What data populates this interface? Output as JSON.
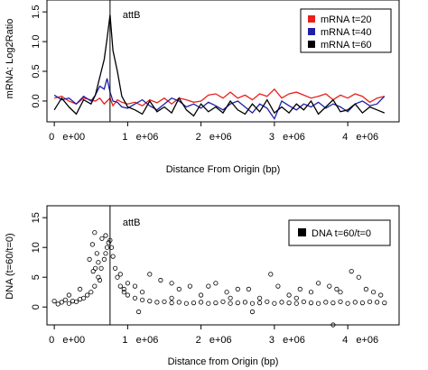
{
  "chart_data": [
    {
      "type": "line",
      "title": "",
      "xlabel": "Distance From Origin (bp)",
      "ylabel": "mRNA: Log2Ratio",
      "xlim": [
        -100000,
        4700000
      ],
      "ylim": [
        -0.35,
        1.7
      ],
      "x_ticks": [
        {
          "value": 0,
          "label": "0   e+00"
        },
        {
          "value": 1000000,
          "label": "1   e+06"
        },
        {
          "value": 2000000,
          "label": "2   e+06"
        },
        {
          "value": 3000000,
          "label": "3   e+06"
        },
        {
          "value": 4000000,
          "label": "4   e+06"
        }
      ],
      "y_ticks": [
        {
          "value": 0.0,
          "label": "0.0"
        },
        {
          "value": 0.5,
          "label": "0.5"
        },
        {
          "value": 1.0,
          "label": "1.0"
        },
        {
          "value": 1.5,
          "label": "1.5"
        }
      ],
      "vline": {
        "x": 760000,
        "label": "attB"
      },
      "legend_position": "top-right",
      "grid": false,
      "x": [
        0,
        100000,
        200000,
        300000,
        400000,
        500000,
        560000,
        620000,
        680000,
        720000,
        760000,
        800000,
        860000,
        920000,
        1000000,
        1100000,
        1200000,
        1300000,
        1400000,
        1500000,
        1600000,
        1700000,
        1800000,
        1900000,
        2000000,
        2100000,
        2200000,
        2300000,
        2400000,
        2500000,
        2600000,
        2700000,
        2800000,
        2900000,
        3000000,
        3100000,
        3200000,
        3300000,
        3400000,
        3500000,
        3600000,
        3700000,
        3800000,
        3900000,
        4000000,
        4100000,
        4200000,
        4300000,
        4400000,
        4500000
      ],
      "series": [
        {
          "name": "mRNA t=20",
          "color": "#e8211d",
          "values": [
            0.05,
            0.08,
            0.0,
            -0.05,
            0.05,
            0.02,
            0.0,
            0.05,
            -0.05,
            0.0,
            0.05,
            -0.08,
            0.02,
            -0.02,
            -0.05,
            -0.02,
            -0.08,
            0.02,
            -0.03,
            0.05,
            -0.05,
            0.05,
            0.02,
            -0.02,
            0.0,
            0.1,
            0.12,
            0.05,
            0.15,
            0.05,
            0.1,
            0.02,
            0.12,
            0.08,
            0.2,
            0.05,
            0.12,
            0.15,
            0.1,
            0.05,
            0.08,
            0.12,
            0.02,
            0.1,
            0.05,
            0.12,
            0.08,
            -0.02,
            0.05,
            0.08
          ]
        },
        {
          "name": "mRNA t=40",
          "color": "#1f1fa8",
          "values": [
            0.1,
            0.02,
            0.05,
            -0.05,
            0.08,
            0.0,
            0.1,
            0.25,
            0.2,
            0.38,
            0.15,
            0.0,
            -0.02,
            -0.1,
            -0.12,
            -0.05,
            0.02,
            -0.08,
            -0.15,
            -0.05,
            0.05,
            0.0,
            -0.1,
            -0.05,
            -0.12,
            -0.02,
            -0.08,
            -0.15,
            -0.05,
            0.0,
            -0.1,
            -0.2,
            -0.05,
            -0.12,
            -0.3,
            0.0,
            -0.08,
            -0.15,
            -0.05,
            -0.1,
            -0.02,
            -0.12,
            -0.05,
            -0.1,
            -0.18,
            -0.05,
            0.0,
            -0.08,
            -0.05,
            0.08
          ]
        },
        {
          "name": "mRNA t=60",
          "color": "#000000",
          "values": [
            -0.15,
            0.05,
            -0.1,
            -0.22,
            0.02,
            -0.05,
            0.1,
            0.4,
            0.7,
            1.05,
            1.45,
            0.85,
            0.5,
            0.08,
            -0.1,
            -0.15,
            -0.22,
            0.0,
            -0.18,
            -0.1,
            -0.2,
            0.05,
            -0.15,
            -0.25,
            -0.05,
            -0.18,
            -0.1,
            -0.2,
            0.0,
            -0.15,
            -0.22,
            -0.05,
            -0.18,
            0.02,
            -0.2,
            -0.1,
            -0.2,
            -0.05,
            -0.15,
            0.0,
            -0.22,
            -0.1,
            0.02,
            -0.18,
            -0.15,
            -0.05,
            -0.2,
            -0.1,
            -0.15,
            -0.2
          ]
        }
      ]
    },
    {
      "type": "scatter",
      "title": "",
      "xlabel": "Distance from Origin (bp)",
      "ylabel": "DNA (t=60/t=0)",
      "xlim": [
        -100000,
        4700000
      ],
      "ylim": [
        -3,
        17
      ],
      "x_ticks": [
        {
          "value": 0,
          "label": "0   e+00"
        },
        {
          "value": 1000000,
          "label": "1   e+06"
        },
        {
          "value": 2000000,
          "label": "2   e+06"
        },
        {
          "value": 3000000,
          "label": "3   e+06"
        },
        {
          "value": 4000000,
          "label": "4   e+06"
        }
      ],
      "y_ticks": [
        {
          "value": 0,
          "label": "0"
        },
        {
          "value": 5,
          "label": "5"
        },
        {
          "value": 10,
          "label": "10"
        },
        {
          "value": 15,
          "label": "15"
        }
      ],
      "vline": {
        "x": 760000,
        "label": "attB"
      },
      "legend_position": "top-right",
      "grid": false,
      "series": [
        {
          "name": "DNA t=60/t=0",
          "color": "#000000",
          "points": [
            [
              0,
              1.0
            ],
            [
              50000,
              0.5
            ],
            [
              100000,
              0.8
            ],
            [
              150000,
              1.2
            ],
            [
              200000,
              0.6
            ],
            [
              250000,
              1.0
            ],
            [
              300000,
              0.9
            ],
            [
              350000,
              1.3
            ],
            [
              400000,
              1.5
            ],
            [
              450000,
              2.0
            ],
            [
              500000,
              2.5
            ],
            [
              550000,
              3.5
            ],
            [
              600000,
              5.0
            ],
            [
              640000,
              6.5
            ],
            [
              680000,
              8.0
            ],
            [
              700000,
              9.0
            ],
            [
              720000,
              10.0
            ],
            [
              740000,
              10.8
            ],
            [
              760000,
              11.2
            ],
            [
              780000,
              10.0
            ],
            [
              800000,
              8.5
            ],
            [
              830000,
              6.5
            ],
            [
              860000,
              5.0
            ],
            [
              900000,
              3.5
            ],
            [
              950000,
              2.5
            ],
            [
              1000000,
              2.0
            ],
            [
              1100000,
              1.5
            ],
            [
              1200000,
              1.2
            ],
            [
              1300000,
              1.0
            ],
            [
              1400000,
              0.8
            ],
            [
              1500000,
              0.9
            ],
            [
              1600000,
              0.7
            ],
            [
              1700000,
              0.8
            ],
            [
              1800000,
              0.6
            ],
            [
              1900000,
              0.7
            ],
            [
              2000000,
              0.8
            ],
            [
              2100000,
              0.6
            ],
            [
              2200000,
              0.7
            ],
            [
              2300000,
              0.9
            ],
            [
              2400000,
              0.6
            ],
            [
              2500000,
              0.7
            ],
            [
              2600000,
              0.8
            ],
            [
              2700000,
              0.6
            ],
            [
              2800000,
              0.7
            ],
            [
              2900000,
              0.9
            ],
            [
              3000000,
              0.6
            ],
            [
              3100000,
              0.8
            ],
            [
              3200000,
              0.7
            ],
            [
              3300000,
              0.6
            ],
            [
              3400000,
              0.9
            ],
            [
              3500000,
              0.7
            ],
            [
              3600000,
              0.6
            ],
            [
              3700000,
              0.8
            ],
            [
              3800000,
              0.7
            ],
            [
              3900000,
              0.9
            ],
            [
              4000000,
              0.6
            ],
            [
              4100000,
              0.8
            ],
            [
              4200000,
              0.7
            ],
            [
              4300000,
              0.9
            ],
            [
              4400000,
              0.8
            ],
            [
              4500000,
              0.7
            ],
            [
              550000,
              12.5
            ],
            [
              520000,
              10.5
            ],
            [
              480000,
              8.0
            ],
            [
              600000,
              7.5
            ],
            [
              650000,
              11.5
            ],
            [
              700000,
              12.0
            ],
            [
              560000,
              6.5
            ],
            [
              530000,
              6.0
            ],
            [
              580000,
              9.0
            ],
            [
              620000,
              4.5
            ],
            [
              900000,
              5.5
            ],
            [
              950000,
              3.0
            ],
            [
              1000000,
              4.0
            ],
            [
              1100000,
              3.5
            ],
            [
              1200000,
              2.5
            ],
            [
              1300000,
              5.5
            ],
            [
              1450000,
              4.5
            ],
            [
              1600000,
              4.0
            ],
            [
              1700000,
              3.0
            ],
            [
              1850000,
              3.5
            ],
            [
              2000000,
              2.0
            ],
            [
              2100000,
              3.5
            ],
            [
              2200000,
              4.0
            ],
            [
              2350000,
              2.5
            ],
            [
              2500000,
              3.0
            ],
            [
              2650000,
              3.0
            ],
            [
              2800000,
              1.5
            ],
            [
              2950000,
              5.5
            ],
            [
              3050000,
              3.5
            ],
            [
              3200000,
              2.0
            ],
            [
              3350000,
              3.0
            ],
            [
              3500000,
              2.5
            ],
            [
              3600000,
              4.0
            ],
            [
              3750000,
              3.5
            ],
            [
              3850000,
              3.0
            ],
            [
              3900000,
              2.5
            ],
            [
              4050000,
              6.0
            ],
            [
              4150000,
              5.0
            ],
            [
              4250000,
              3.0
            ],
            [
              4350000,
              2.5
            ],
            [
              4450000,
              2.0
            ],
            [
              3800000,
              -3.0
            ],
            [
              200000,
              2.0
            ],
            [
              350000,
              3.0
            ],
            [
              1150000,
              -0.8
            ],
            [
              2700000,
              -0.8
            ],
            [
              1600000,
              1.5
            ],
            [
              2400000,
              1.5
            ],
            [
              3300000,
              1.5
            ]
          ]
        }
      ]
    }
  ]
}
